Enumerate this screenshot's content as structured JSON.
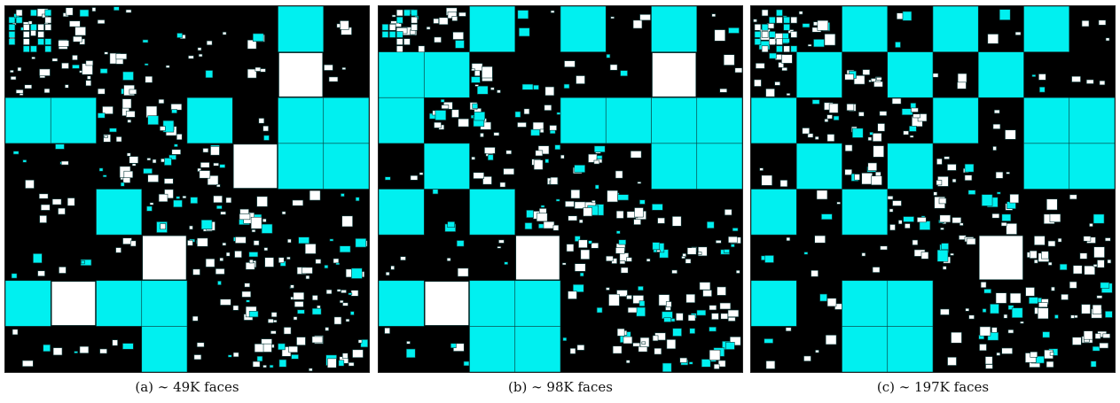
{
  "colors": {
    "background": "#000000",
    "dense_block": "#00f0f0",
    "low_rank_block": "#ffffff",
    "grid": "#1a4a4a"
  },
  "panels": [
    {
      "id": "a",
      "caption": "(a) ∼ 49K faces"
    },
    {
      "id": "b",
      "caption": "(b) ∼ 98K faces"
    },
    {
      "id": "c",
      "caption": "(c) ∼ 197K faces"
    }
  ]
}
